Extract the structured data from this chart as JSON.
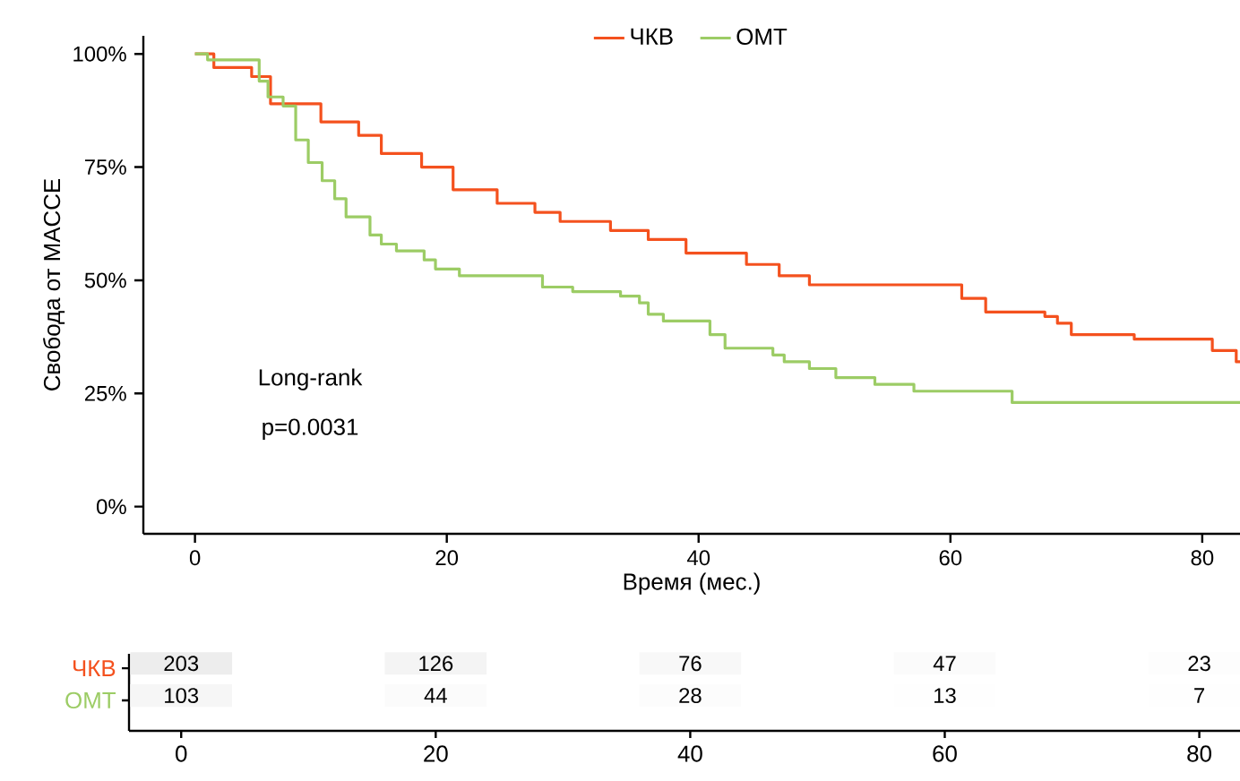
{
  "chart_data": [
    {
      "type": "step",
      "xlabel": "Время (мес.)",
      "ylabel": "Свобода от MACCE",
      "legend": "top",
      "xlim": [
        -4.1,
        83
      ],
      "xticks": [
        0,
        20,
        40,
        60,
        80
      ],
      "ylim": [
        -6,
        104
      ],
      "yticks": [
        {
          "value": 0,
          "label": "0%"
        },
        {
          "value": 25,
          "label": "25%"
        },
        {
          "value": 50,
          "label": "50%"
        },
        {
          "value": 75,
          "label": "75%"
        },
        {
          "value": 100,
          "label": "100%"
        }
      ],
      "annotations": [
        "Long-rank",
        "p=0.0031"
      ],
      "series": [
        {
          "name": "ЧКВ",
          "color": "#f4511e",
          "x": [
            0,
            1.5,
            4.5,
            6,
            10,
            13,
            14.8,
            18,
            20.5,
            24,
            27,
            29,
            33,
            36,
            39,
            43.8,
            46.4,
            48.8,
            60.9,
            62.8,
            67.5,
            68.5,
            69.6,
            74.6,
            80.8,
            82.7,
            83
          ],
          "values": [
            100,
            97,
            95,
            89,
            85,
            82,
            78,
            75,
            70,
            67,
            65,
            63,
            61,
            59,
            56,
            53.5,
            51,
            49,
            46,
            43,
            42,
            40.5,
            38,
            37,
            34.5,
            32,
            32
          ]
        },
        {
          "name": "ОМТ",
          "color": "#9ccc65",
          "x": [
            0,
            1,
            5.1,
            5.8,
            7,
            8,
            9,
            10.1,
            11.1,
            12,
            13.9,
            14.8,
            16,
            18.2,
            19.1,
            21,
            27.6,
            30,
            33.8,
            35.3,
            36,
            37.2,
            40.9,
            42.1,
            45.9,
            46.8,
            48.8,
            50.9,
            54,
            57.1,
            64.9,
            83
          ],
          "values": [
            100,
            98.7,
            94,
            90.5,
            88.5,
            81,
            76,
            72,
            68,
            64,
            60,
            58,
            56.5,
            54.5,
            52.5,
            51,
            48.5,
            47.5,
            46.5,
            45,
            42.5,
            41,
            38,
            35,
            33.5,
            32,
            30.5,
            28.5,
            27,
            25.5,
            23,
            23
          ]
        }
      ]
    },
    {
      "type": "heatmap",
      "categories": [
        "0",
        "20",
        "40",
        "60",
        "80"
      ],
      "y_categories": [
        "ЧКВ",
        "ОМТ"
      ],
      "cells": [
        [
          203,
          126,
          76,
          47,
          23
        ],
        [
          103,
          44,
          28,
          13,
          7
        ]
      ],
      "cell_labels": [
        [
          "203",
          "126",
          "76",
          "47",
          "23"
        ],
        [
          "103",
          "44",
          "28",
          "13",
          "7"
        ]
      ]
    }
  ]
}
